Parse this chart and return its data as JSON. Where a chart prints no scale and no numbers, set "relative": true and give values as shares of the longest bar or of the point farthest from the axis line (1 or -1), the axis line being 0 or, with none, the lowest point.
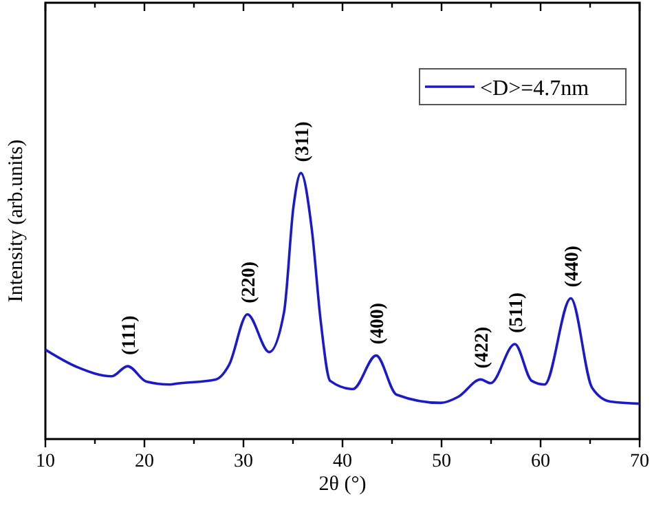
{
  "chart_data": {
    "type": "line",
    "relative": true,
    "xlabel": "2θ (°)",
    "ylabel": "Intensity (arb.units)",
    "xlim": [
      10,
      70
    ],
    "xticks": [
      10,
      {
        "value": 15,
        "label": null
      },
      20,
      {
        "value": 25,
        "label": null
      },
      30,
      {
        "value": 35,
        "label": null
      },
      40,
      {
        "value": 45,
        "label": null
      },
      50,
      {
        "value": 55,
        "label": null
      },
      60,
      {
        "value": 65,
        "label": null
      },
      70
    ],
    "tick_labels": "x",
    "legend": "top right",
    "line_style": "solid",
    "grid": false,
    "series": [
      {
        "name": "<D>=4.7nm",
        "color": "#1a1acc",
        "x": [
          10,
          13.25,
          16.7,
          18.3,
          20.2,
          22.6,
          23.2,
          27.2,
          28.55,
          30.4,
          32.6,
          34.1,
          35.05,
          35.8,
          36.9,
          37.8,
          38.75,
          41.05,
          43.4,
          45.45,
          49.9,
          51.7,
          53.95,
          54.95,
          57.4,
          59.1,
          60.4,
          63.05,
          65.2,
          67.05,
          70
        ],
        "values": [
          0.336,
          0.27,
          0.236,
          0.274,
          0.216,
          0.205,
          0.208,
          0.224,
          0.279,
          0.469,
          0.327,
          0.478,
          0.874,
          1.0,
          0.788,
          0.443,
          0.219,
          0.188,
          0.314,
          0.167,
          0.136,
          0.159,
          0.224,
          0.21,
          0.357,
          0.219,
          0.205,
          0.529,
          0.193,
          0.141,
          0.133
        ]
      }
    ],
    "annotations": [
      {
        "text": "(111)",
        "x": 18.3,
        "y": 0.274
      },
      {
        "text": "(220)",
        "x": 30.4,
        "y": 0.469
      },
      {
        "text": "(311)",
        "x": 35.8,
        "y": 1.0
      },
      {
        "text": "(400)",
        "x": 43.4,
        "y": 0.314
      },
      {
        "text": "(422)",
        "x": 53.95,
        "y": 0.224
      },
      {
        "text": "(511)",
        "x": 57.4,
        "y": 0.357
      },
      {
        "text": "(440)",
        "x": 63.05,
        "y": 0.529
      }
    ]
  }
}
